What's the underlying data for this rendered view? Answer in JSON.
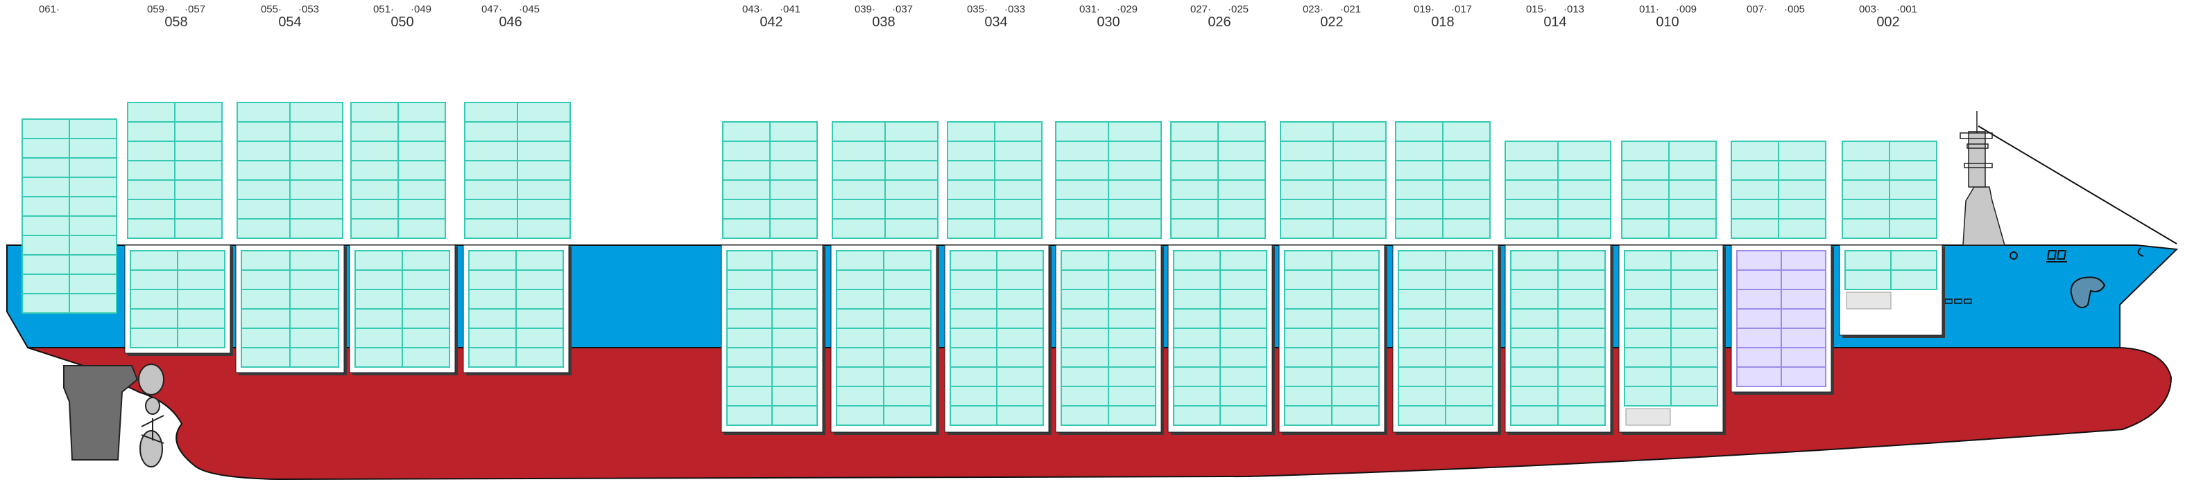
{
  "diagram": {
    "colors": {
      "hull_red": "#bb2229",
      "hull_blue": "#009ee0",
      "hull_outline": "#111111",
      "container_fill": "#c6f5ee",
      "container_line": "#36c9b3",
      "special_fill": "#e3ddff",
      "special_line": "#9c8ce8",
      "rudder": "#6e6e6e",
      "propeller": "#c4c4c4"
    },
    "bays": [
      {
        "bay": "",
        "left": "061",
        "right": ""
      },
      {
        "bay": "058",
        "left": "059",
        "right": "057"
      },
      {
        "bay": "054",
        "left": "055",
        "right": "053"
      },
      {
        "bay": "050",
        "left": "051",
        "right": "049"
      },
      {
        "bay": "046",
        "left": "047",
        "right": "045"
      },
      {
        "bay": "042",
        "left": "043",
        "right": "041"
      },
      {
        "bay": "038",
        "left": "039",
        "right": "037"
      },
      {
        "bay": "034",
        "left": "035",
        "right": "033"
      },
      {
        "bay": "030",
        "left": "031",
        "right": "029"
      },
      {
        "bay": "026",
        "left": "027",
        "right": "025"
      },
      {
        "bay": "022",
        "left": "023",
        "right": "021"
      },
      {
        "bay": "018",
        "left": "019",
        "right": "017"
      },
      {
        "bay": "014",
        "left": "015",
        "right": "013"
      },
      {
        "bay": "010",
        "left": "011",
        "right": "009"
      },
      {
        "bay": "",
        "left": "007",
        "right": "005"
      },
      {
        "bay": "002",
        "left": "003",
        "right": "001"
      }
    ]
  }
}
